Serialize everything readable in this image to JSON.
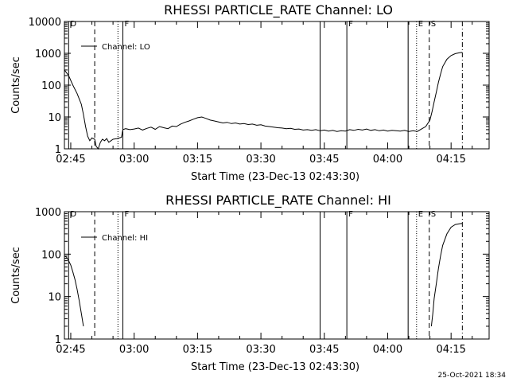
{
  "chart_data": [
    {
      "type": "line",
      "title": "RHESSI PARTICLE_RATE Channel: LO",
      "xlabel": "Start Time (23-Dec-13 02:43:30)",
      "ylabel": "Counts/sec",
      "y_scale": "log",
      "ylim": [
        1,
        10000
      ],
      "y_ticks": [
        "1",
        "10",
        "100",
        "1000",
        "10000"
      ],
      "xlim": [
        "02:43:30",
        "04:24:00"
      ],
      "x_ticks": [
        "02:45",
        "03:00",
        "03:15",
        "03:30",
        "03:45",
        "04:00",
        "04:15"
      ],
      "legend": {
        "label": "Channel: LO",
        "position": "top-left"
      },
      "markers": [
        {
          "time": "02:44:30",
          "style": "solid",
          "label": "D"
        },
        {
          "time": "02:50:40",
          "style": "dashed",
          "label": ""
        },
        {
          "time": "02:56:10",
          "style": "dotted",
          "label": ""
        },
        {
          "time": "02:57:20",
          "style": "solid",
          "label": "F"
        },
        {
          "time": "03:44:00",
          "style": "solid",
          "label": ""
        },
        {
          "time": "03:50:20",
          "style": "solid",
          "label": "F"
        },
        {
          "time": "04:04:50",
          "style": "solid",
          "label": ""
        },
        {
          "time": "04:06:50",
          "style": "dotted",
          "label": "E"
        },
        {
          "time": "04:09:50",
          "style": "dashed",
          "label": "S"
        },
        {
          "time": "04:17:40",
          "style": "dashdot",
          "label": ""
        }
      ],
      "series": [
        {
          "points": [
            [
              "02:43:30",
              300
            ],
            [
              "02:44:30",
              200
            ],
            [
              "02:45:30",
              100
            ],
            [
              "02:46:30",
              55
            ],
            [
              "02:47:30",
              25
            ],
            [
              "02:48:00",
              12
            ],
            [
              "02:48:30",
              5
            ],
            [
              "02:49:00",
              2.5
            ],
            [
              "02:49:30",
              1.8
            ],
            [
              "02:50:00",
              2.2
            ],
            [
              "02:50:40",
              2.0
            ],
            [
              "02:51:00",
              1.2
            ],
            [
              "02:51:30",
              1.0
            ],
            [
              "02:52:00",
              1.6
            ],
            [
              "02:52:30",
              2.0
            ],
            [
              "02:53:00",
              1.8
            ],
            [
              "02:53:30",
              2.1
            ],
            [
              "02:54:00",
              1.6
            ],
            [
              "02:55:00",
              2.0
            ],
            [
              "02:56:00",
              2.1
            ],
            [
              "02:57:00",
              2.3
            ],
            [
              "02:57:20",
              4.0
            ],
            [
              "02:58:00",
              4.3
            ],
            [
              "02:59:00",
              4.0
            ],
            [
              "03:00:00",
              4.2
            ],
            [
              "03:01:00",
              4.5
            ],
            [
              "03:02:00",
              3.9
            ],
            [
              "03:03:00",
              4.4
            ],
            [
              "03:04:00",
              4.8
            ],
            [
              "03:05:00",
              4.1
            ],
            [
              "03:06:00",
              5.0
            ],
            [
              "03:07:00",
              4.6
            ],
            [
              "03:08:00",
              4.3
            ],
            [
              "03:09:00",
              5.2
            ],
            [
              "03:10:00",
              5.0
            ],
            [
              "03:11:00",
              6.0
            ],
            [
              "03:12:00",
              6.8
            ],
            [
              "03:13:00",
              7.5
            ],
            [
              "03:14:00",
              8.5
            ],
            [
              "03:15:00",
              9.5
            ],
            [
              "03:16:00",
              10.0
            ],
            [
              "03:17:00",
              9.0
            ],
            [
              "03:18:00",
              8.0
            ],
            [
              "03:19:00",
              7.5
            ],
            [
              "03:20:00",
              7.0
            ],
            [
              "03:21:00",
              6.5
            ],
            [
              "03:22:00",
              6.8
            ],
            [
              "03:23:00",
              6.2
            ],
            [
              "03:24:00",
              6.5
            ],
            [
              "03:25:00",
              6.0
            ],
            [
              "03:26:00",
              6.2
            ],
            [
              "03:27:00",
              5.8
            ],
            [
              "03:28:00",
              6.0
            ],
            [
              "03:29:00",
              5.5
            ],
            [
              "03:30:00",
              5.7
            ],
            [
              "03:31:00",
              5.2
            ],
            [
              "03:32:00",
              5.0
            ],
            [
              "03:33:00",
              4.8
            ],
            [
              "03:34:00",
              4.6
            ],
            [
              "03:35:00",
              4.5
            ],
            [
              "03:36:00",
              4.3
            ],
            [
              "03:37:00",
              4.4
            ],
            [
              "03:38:00",
              4.1
            ],
            [
              "03:39:00",
              4.2
            ],
            [
              "03:40:00",
              3.9
            ],
            [
              "03:41:00",
              4.0
            ],
            [
              "03:42:00",
              3.8
            ],
            [
              "03:43:00",
              4.0
            ],
            [
              "03:44:00",
              3.7
            ],
            [
              "03:45:00",
              3.9
            ],
            [
              "03:46:00",
              3.6
            ],
            [
              "03:47:00",
              3.8
            ],
            [
              "03:48:00",
              3.5
            ],
            [
              "03:49:00",
              3.7
            ],
            [
              "03:50:00",
              3.6
            ],
            [
              "03:51:00",
              4.0
            ],
            [
              "03:52:00",
              3.8
            ],
            [
              "03:53:00",
              4.1
            ],
            [
              "03:54:00",
              3.9
            ],
            [
              "03:55:00",
              4.2
            ],
            [
              "03:56:00",
              3.8
            ],
            [
              "03:57:00",
              4.0
            ],
            [
              "03:58:00",
              3.7
            ],
            [
              "03:59:00",
              3.9
            ],
            [
              "04:00:00",
              3.6
            ],
            [
              "04:01:00",
              3.8
            ],
            [
              "04:02:00",
              3.7
            ],
            [
              "04:03:00",
              3.6
            ],
            [
              "04:04:00",
              3.8
            ],
            [
              "04:05:00",
              3.5
            ],
            [
              "04:06:00",
              3.7
            ],
            [
              "04:07:00",
              3.5
            ],
            [
              "04:08:00",
              4.2
            ],
            [
              "04:09:00",
              5.0
            ],
            [
              "04:10:00",
              8.0
            ],
            [
              "04:10:30",
              15
            ],
            [
              "04:11:00",
              30
            ],
            [
              "04:11:30",
              60
            ],
            [
              "04:12:00",
              120
            ],
            [
              "04:12:30",
              220
            ],
            [
              "04:13:00",
              380
            ],
            [
              "04:14:00",
              650
            ],
            [
              "04:15:00",
              850
            ],
            [
              "04:16:00",
              980
            ],
            [
              "04:17:00",
              1050
            ],
            [
              "04:17:40",
              1080
            ]
          ]
        }
      ]
    },
    {
      "type": "line",
      "title": "RHESSI PARTICLE_RATE Channel: HI",
      "xlabel": "Start Time (23-Dec-13 02:43:30)",
      "ylabel": "Counts/sec",
      "y_scale": "log",
      "ylim": [
        1,
        1000
      ],
      "y_ticks": [
        "1",
        "10",
        "100",
        "1000"
      ],
      "xlim": [
        "02:43:30",
        "04:24:00"
      ],
      "x_ticks": [
        "02:45",
        "03:00",
        "03:15",
        "03:30",
        "03:45",
        "04:00",
        "04:15"
      ],
      "legend": {
        "label": "Channel: HI",
        "position": "top-left"
      },
      "markers": [
        {
          "time": "02:44:30",
          "style": "solid",
          "label": "D"
        },
        {
          "time": "02:50:40",
          "style": "dashed",
          "label": ""
        },
        {
          "time": "02:56:10",
          "style": "dotted",
          "label": ""
        },
        {
          "time": "02:57:20",
          "style": "solid",
          "label": "F"
        },
        {
          "time": "03:44:00",
          "style": "solid",
          "label": ""
        },
        {
          "time": "03:50:20",
          "style": "solid",
          "label": "F"
        },
        {
          "time": "04:04:50",
          "style": "solid",
          "label": ""
        },
        {
          "time": "04:06:50",
          "style": "dotted",
          "label": "E"
        },
        {
          "time": "04:09:50",
          "style": "dashed",
          "label": "S"
        },
        {
          "time": "04:17:40",
          "style": "dashdot",
          "label": ""
        }
      ],
      "series": [
        {
          "points": [
            [
              "02:43:30",
              90
            ],
            [
              "02:44:00",
              85
            ],
            [
              "02:44:30",
              70
            ],
            [
              "02:45:00",
              55
            ],
            [
              "02:45:30",
              38
            ],
            [
              "02:46:00",
              25
            ],
            [
              "02:46:30",
              15
            ],
            [
              "02:47:00",
              8
            ],
            [
              "02:47:30",
              4
            ],
            [
              "02:48:00",
              2
            ]
          ]
        },
        {
          "points": [
            [
              "04:10:20",
              2
            ],
            [
              "04:10:40",
              4
            ],
            [
              "04:11:00",
              9
            ],
            [
              "04:11:30",
              20
            ],
            [
              "04:12:00",
              45
            ],
            [
              "04:12:30",
              90
            ],
            [
              "04:13:00",
              160
            ],
            [
              "04:14:00",
              300
            ],
            [
              "04:15:00",
              430
            ],
            [
              "04:16:00",
              500
            ],
            [
              "04:17:00",
              520
            ],
            [
              "04:17:40",
              530
            ]
          ]
        }
      ]
    }
  ],
  "footer": {
    "timestamp": "25-Oct-2021 18:34"
  }
}
